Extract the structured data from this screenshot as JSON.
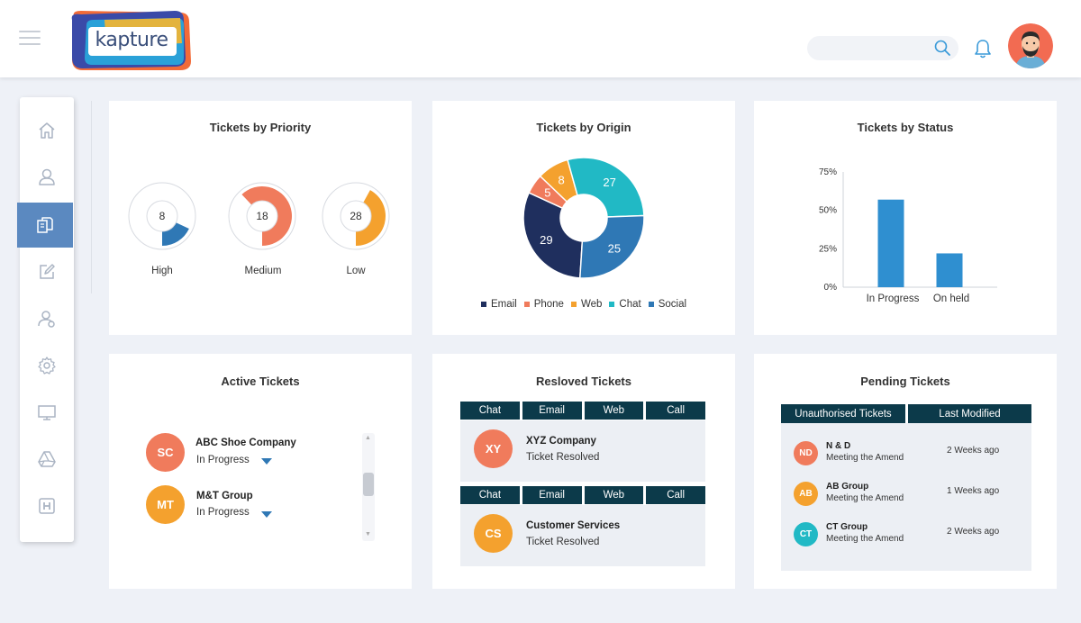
{
  "header": {
    "logo_text": "kapture",
    "search_placeholder": ""
  },
  "sidebar": {
    "items": [
      {
        "icon": "home-icon"
      },
      {
        "icon": "user-icon"
      },
      {
        "icon": "documents-icon",
        "active": true
      },
      {
        "icon": "edit-icon"
      },
      {
        "icon": "users-icon"
      },
      {
        "icon": "gear-icon"
      },
      {
        "icon": "monitor-icon"
      },
      {
        "icon": "drive-icon"
      },
      {
        "icon": "h-icon"
      }
    ]
  },
  "priority": {
    "title": "Tickets by Priority",
    "items": [
      {
        "label": "High",
        "value": "8",
        "fraction": 0.18,
        "color": "#2f78b5"
      },
      {
        "label": "Medium",
        "value": "18",
        "fraction": 0.62,
        "color": "#f07b5c"
      },
      {
        "label": "Low",
        "value": "28",
        "fraction": 0.42,
        "color": "#f4a12e"
      }
    ]
  },
  "origin": {
    "title": "Tickets by Origin",
    "chart_data": {
      "type": "pie",
      "categories": [
        "Email",
        "Phone",
        "Web",
        "Chat",
        "Social"
      ],
      "values": [
        29,
        5,
        8,
        27,
        25
      ],
      "colors": [
        "#1f2f5e",
        "#f07b5c",
        "#f4a12e",
        "#21b9c5",
        "#2f78b5"
      ]
    }
  },
  "status": {
    "title": "Tickets by Status",
    "chart_data": {
      "type": "bar",
      "categories": [
        "In Progress",
        "On held"
      ],
      "values": [
        57,
        22
      ],
      "ylim": [
        0,
        75
      ],
      "yticks": [
        "0%",
        "25%",
        "50%",
        "75%"
      ],
      "color": "#2f8fd0"
    }
  },
  "active": {
    "title": "Active Tickets",
    "items": [
      {
        "initials": "SC",
        "name": "ABC Shoe Company",
        "status": "In Progress",
        "color": "#f07b5c"
      },
      {
        "initials": "MT",
        "name": "M&T Group",
        "status": "In Progress",
        "color": "#f4a12e"
      }
    ]
  },
  "resolved": {
    "title": "Resloved Tickets",
    "tabs": [
      "Chat",
      "Email",
      "Web",
      "Call"
    ],
    "items": [
      {
        "initials": "XY",
        "name": "XYZ Company",
        "status": "Ticket Resolved",
        "color": "#f07b5c"
      },
      {
        "initials": "CS",
        "name": "Customer Services",
        "status": "Ticket Resolved",
        "color": "#f4a12e"
      }
    ]
  },
  "pending": {
    "title": "Pending Tickets",
    "columns": [
      "Unauthorised Tickets",
      "Last Modified"
    ],
    "items": [
      {
        "initials": "ND",
        "name": "N & D",
        "sub": "Meeting the Amend",
        "time": "2 Weeks ago",
        "color": "#f07b5c"
      },
      {
        "initials": "AB",
        "name": "AB Group",
        "sub": "Meeting the Amend",
        "time": "1 Weeks ago",
        "color": "#f4a12e"
      },
      {
        "initials": "CT",
        "name": "CT Group",
        "sub": "Meeting the Amend",
        "time": "2 Weeks ago",
        "color": "#21b9c5"
      }
    ]
  }
}
